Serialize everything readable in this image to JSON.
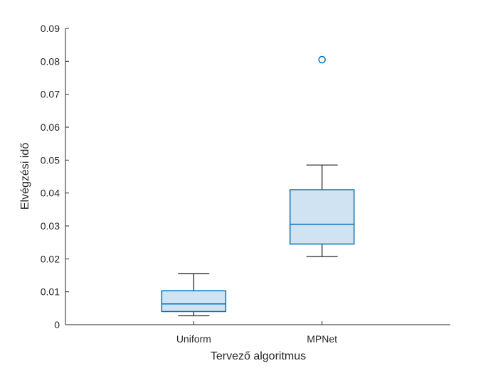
{
  "chart_data": {
    "type": "box",
    "xlabel": "Tervező algoritmus",
    "ylabel": "Elvégzési idő",
    "ylim": [
      0,
      0.09
    ],
    "yticks": [
      "0",
      "0.01",
      "0.02",
      "0.03",
      "0.04",
      "0.05",
      "0.06",
      "0.07",
      "0.08",
      "0.09"
    ],
    "categories": [
      "Uniform",
      "MPNet"
    ],
    "boxes": [
      {
        "name": "Uniform",
        "whisker_low": 0.0027,
        "q1": 0.004,
        "median": 0.0063,
        "q3": 0.0103,
        "whisker_high": 0.0155,
        "outliers": []
      },
      {
        "name": "MPNet",
        "whisker_low": 0.0207,
        "q1": 0.0245,
        "median": 0.0305,
        "q3": 0.041,
        "whisker_high": 0.0485,
        "outliers": [
          0.0805
        ]
      }
    ],
    "colors": {
      "box_fill": "#cfe3f2",
      "box_edge": "#0072bd",
      "whisker": "#262626",
      "axis": "#262626"
    }
  }
}
